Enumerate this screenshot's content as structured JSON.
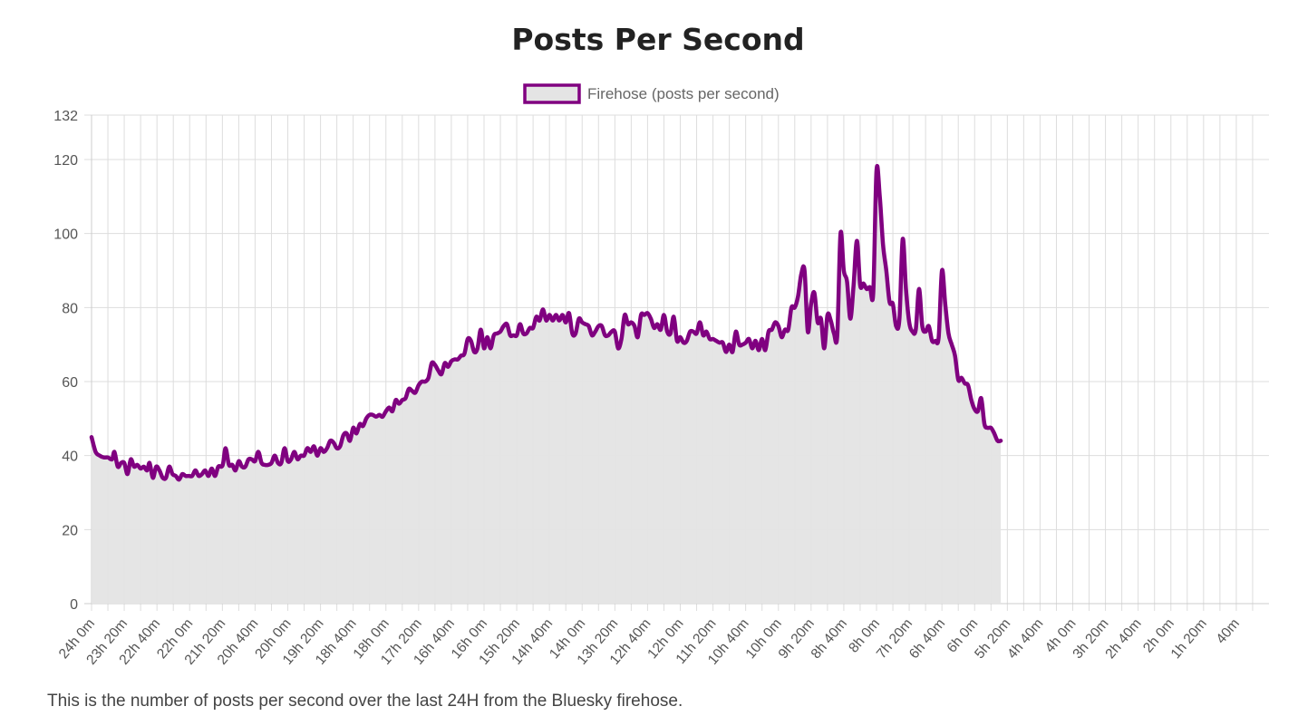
{
  "page": {
    "caption": "This is the number of posts per second over the last 24H from the Bluesky firehose."
  },
  "colors": {
    "line": "#800080",
    "fill": "#e4e4e4",
    "grid": "#dddddd",
    "text": "#555555"
  },
  "chart_data": {
    "type": "area",
    "title": "Posts Per Second",
    "xlabel": "",
    "ylabel": "",
    "ylim": [
      0,
      132
    ],
    "yticks": [
      0,
      20,
      40,
      60,
      80,
      100,
      120,
      132
    ],
    "grid": true,
    "legend_position": "top-center",
    "categories": [
      "24h 0m",
      "23h 20m",
      "22h 40m",
      "22h 0m",
      "21h 20m",
      "20h 40m",
      "20h 0m",
      "19h 20m",
      "18h 40m",
      "18h 0m",
      "17h 20m",
      "16h 40m",
      "16h 0m",
      "15h 20m",
      "14h 40m",
      "14h 0m",
      "13h 20m",
      "12h 40m",
      "12h 0m",
      "11h 20m",
      "10h 40m",
      "10h 0m",
      "9h 20m",
      "8h 40m",
      "8h 0m",
      "7h 20m",
      "6h 40m",
      "6h 0m",
      "5h 20m",
      "4h 40m",
      "4h 0m",
      "3h 20m",
      "2h 40m",
      "2h 0m",
      "1h 20m",
      "40m"
    ],
    "x_range_minutes_ago": [
      1440,
      0
    ],
    "series": [
      {
        "name": "Firehose (posts per second)",
        "points_minutes_ago": [
          [
            1440,
            45
          ],
          [
            1435,
            41
          ],
          [
            1430,
            40
          ],
          [
            1425,
            39.5
          ],
          [
            1420,
            39.5
          ],
          [
            1415,
            39
          ],
          [
            1412,
            41
          ],
          [
            1408,
            37
          ],
          [
            1404,
            38
          ],
          [
            1400,
            38
          ],
          [
            1396,
            35
          ],
          [
            1392,
            39
          ],
          [
            1388,
            37
          ],
          [
            1384,
            37.5
          ],
          [
            1380,
            36.5
          ],
          [
            1376,
            37
          ],
          [
            1372,
            36
          ],
          [
            1369,
            38
          ],
          [
            1365,
            34
          ],
          [
            1361,
            37
          ],
          [
            1357,
            36
          ],
          [
            1353,
            34
          ],
          [
            1349,
            34
          ],
          [
            1345,
            37
          ],
          [
            1341,
            35
          ],
          [
            1337,
            34.5
          ],
          [
            1333,
            33.5
          ],
          [
            1329,
            35
          ],
          [
            1325,
            34.5
          ],
          [
            1321,
            34.5
          ],
          [
            1317,
            34.5
          ],
          [
            1313,
            36
          ],
          [
            1309,
            34.5
          ],
          [
            1305,
            35
          ],
          [
            1301,
            36
          ],
          [
            1297,
            34.5
          ],
          [
            1293,
            36.5
          ],
          [
            1289,
            34.5
          ],
          [
            1285,
            37
          ],
          [
            1281,
            37
          ],
          [
            1279,
            38
          ],
          [
            1276,
            42
          ],
          [
            1272,
            37.5
          ],
          [
            1268,
            37.5
          ],
          [
            1264,
            36
          ],
          [
            1260,
            38.5
          ],
          [
            1256,
            37
          ],
          [
            1252,
            37
          ],
          [
            1248,
            39
          ],
          [
            1244,
            39
          ],
          [
            1240,
            38.5
          ],
          [
            1236,
            41
          ],
          [
            1232,
            38
          ],
          [
            1228,
            37.5
          ],
          [
            1224,
            37.5
          ],
          [
            1220,
            38
          ],
          [
            1216,
            40
          ],
          [
            1212,
            38
          ],
          [
            1208,
            38
          ],
          [
            1204,
            42
          ],
          [
            1200,
            38.5
          ],
          [
            1196,
            39
          ],
          [
            1192,
            41
          ],
          [
            1188,
            39
          ],
          [
            1184,
            40
          ],
          [
            1180,
            40
          ],
          [
            1176,
            42
          ],
          [
            1172,
            41
          ],
          [
            1168,
            42.5
          ],
          [
            1164,
            40
          ],
          [
            1160,
            42
          ],
          [
            1156,
            41
          ],
          [
            1152,
            42
          ],
          [
            1148,
            44
          ],
          [
            1144,
            43.5
          ],
          [
            1140,
            42
          ],
          [
            1136,
            42.5
          ],
          [
            1132,
            45.5
          ],
          [
            1128,
            46
          ],
          [
            1124,
            44
          ],
          [
            1120,
            47.5
          ],
          [
            1116,
            46
          ],
          [
            1112,
            48.5
          ],
          [
            1108,
            48
          ],
          [
            1104,
            50
          ],
          [
            1100,
            51
          ],
          [
            1096,
            51
          ],
          [
            1092,
            50.5
          ],
          [
            1088,
            51
          ],
          [
            1084,
            50.5
          ],
          [
            1080,
            52
          ],
          [
            1076,
            53
          ],
          [
            1072,
            52
          ],
          [
            1068,
            55
          ],
          [
            1064,
            54
          ],
          [
            1060,
            55
          ],
          [
            1056,
            55.5
          ],
          [
            1052,
            58
          ],
          [
            1048,
            57.5
          ],
          [
            1044,
            57
          ],
          [
            1040,
            59
          ],
          [
            1036,
            60
          ],
          [
            1032,
            60
          ],
          [
            1028,
            61
          ],
          [
            1024,
            65
          ],
          [
            1020,
            64.5
          ],
          [
            1016,
            63
          ],
          [
            1012,
            62
          ],
          [
            1008,
            65
          ],
          [
            1004,
            64
          ],
          [
            1000,
            65.5
          ],
          [
            996,
            66
          ],
          [
            992,
            66
          ],
          [
            988,
            67
          ],
          [
            984,
            67.5
          ],
          [
            980,
            71.5
          ],
          [
            976,
            71
          ],
          [
            972,
            68
          ],
          [
            968,
            69
          ],
          [
            964,
            74
          ],
          [
            960,
            69
          ],
          [
            956,
            72
          ],
          [
            952,
            69
          ],
          [
            948,
            72.5
          ],
          [
            944,
            73
          ],
          [
            940,
            73.5
          ],
          [
            936,
            75
          ],
          [
            932,
            75.5
          ],
          [
            928,
            72.5
          ],
          [
            924,
            72.5
          ],
          [
            920,
            72.5
          ],
          [
            916,
            75.5
          ],
          [
            912,
            73
          ],
          [
            908,
            73
          ],
          [
            904,
            74.5
          ],
          [
            900,
            74.5
          ],
          [
            896,
            77.5
          ],
          [
            892,
            76.5
          ],
          [
            888,
            79.5
          ],
          [
            884,
            76.5
          ],
          [
            880,
            78
          ],
          [
            876,
            76.5
          ],
          [
            872,
            78
          ],
          [
            868,
            76.5
          ],
          [
            864,
            78
          ],
          [
            860,
            76
          ],
          [
            856,
            78.5
          ],
          [
            852,
            73
          ],
          [
            848,
            73
          ],
          [
            844,
            77
          ],
          [
            840,
            76
          ],
          [
            836,
            75.5
          ],
          [
            832,
            75
          ],
          [
            828,
            72.5
          ],
          [
            824,
            73.5
          ],
          [
            820,
            75
          ],
          [
            816,
            75
          ],
          [
            812,
            72.5
          ],
          [
            808,
            72.5
          ],
          [
            804,
            73.5
          ],
          [
            800,
            73.5
          ],
          [
            796,
            69
          ],
          [
            792,
            71.5
          ],
          [
            788,
            78
          ],
          [
            784,
            75.5
          ],
          [
            780,
            76
          ],
          [
            776,
            75
          ],
          [
            772,
            72
          ],
          [
            768,
            78
          ],
          [
            764,
            78
          ],
          [
            760,
            78.5
          ],
          [
            756,
            77
          ],
          [
            752,
            74.5
          ],
          [
            748,
            75.5
          ],
          [
            744,
            74
          ],
          [
            740,
            78
          ],
          [
            736,
            73.5
          ],
          [
            732,
            73
          ],
          [
            728,
            77.5
          ],
          [
            724,
            71
          ],
          [
            720,
            72
          ],
          [
            716,
            70.5
          ],
          [
            712,
            71
          ],
          [
            708,
            73.5
          ],
          [
            704,
            73.5
          ],
          [
            700,
            73
          ],
          [
            696,
            76
          ],
          [
            692,
            72.5
          ],
          [
            688,
            73.5
          ],
          [
            684,
            71.5
          ],
          [
            680,
            71.5
          ],
          [
            676,
            71
          ],
          [
            672,
            70.5
          ],
          [
            668,
            70.5
          ],
          [
            664,
            68
          ],
          [
            660,
            70
          ],
          [
            656,
            68
          ],
          [
            652,
            73.5
          ],
          [
            648,
            70
          ],
          [
            644,
            70
          ],
          [
            640,
            70.5
          ],
          [
            636,
            71.5
          ],
          [
            632,
            69
          ],
          [
            628,
            71
          ],
          [
            624,
            68.5
          ],
          [
            620,
            71.5
          ],
          [
            616,
            68.5
          ],
          [
            612,
            73.5
          ],
          [
            608,
            74
          ],
          [
            604,
            76
          ],
          [
            600,
            75
          ],
          [
            596,
            72
          ],
          [
            592,
            74
          ],
          [
            588,
            74
          ],
          [
            584,
            80
          ],
          [
            580,
            80
          ],
          [
            576,
            83
          ],
          [
            572,
            89
          ],
          [
            568,
            90
          ],
          [
            564,
            73.5
          ],
          [
            560,
            81
          ],
          [
            556,
            84
          ],
          [
            552,
            76
          ],
          [
            548,
            77
          ],
          [
            544,
            69
          ],
          [
            540,
            78
          ],
          [
            536,
            76.5
          ],
          [
            532,
            73
          ],
          [
            528,
            72.5
          ],
          [
            524,
            100
          ],
          [
            520,
            90
          ],
          [
            516,
            87
          ],
          [
            512,
            77
          ],
          [
            508,
            86
          ],
          [
            504,
            98
          ],
          [
            500,
            86
          ],
          [
            496,
            86.5
          ],
          [
            492,
            85
          ],
          [
            488,
            85.5
          ],
          [
            484,
            84
          ],
          [
            480,
            117
          ],
          [
            476,
            110
          ],
          [
            472,
            97
          ],
          [
            468,
            90
          ],
          [
            464,
            81.5
          ],
          [
            460,
            81
          ],
          [
            456,
            75
          ],
          [
            452,
            77
          ],
          [
            448,
            98.5
          ],
          [
            444,
            85
          ],
          [
            440,
            76
          ],
          [
            436,
            73.5
          ],
          [
            432,
            74
          ],
          [
            428,
            85
          ],
          [
            424,
            75
          ],
          [
            420,
            73.5
          ],
          [
            416,
            75
          ],
          [
            412,
            71
          ],
          [
            408,
            71
          ],
          [
            404,
            72
          ],
          [
            400,
            90
          ],
          [
            396,
            81
          ],
          [
            392,
            73
          ],
          [
            388,
            70
          ],
          [
            384,
            67
          ],
          [
            380,
            60.5
          ],
          [
            376,
            61
          ],
          [
            372,
            59.5
          ],
          [
            368,
            59
          ],
          [
            364,
            55
          ],
          [
            360,
            52.5
          ],
          [
            356,
            52
          ],
          [
            352,
            55.5
          ],
          [
            348,
            48.5
          ],
          [
            344,
            47.5
          ],
          [
            340,
            47.5
          ],
          [
            336,
            46
          ],
          [
            332,
            44
          ],
          [
            328,
            44
          ]
        ]
      }
    ]
  }
}
